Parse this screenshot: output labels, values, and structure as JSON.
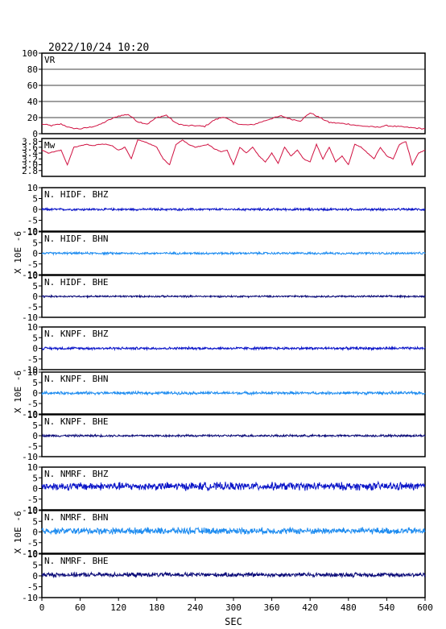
{
  "title": "2022/10/24  10:20",
  "xlabel": "SEC",
  "x_ticks": [
    0,
    60,
    120,
    180,
    240,
    300,
    360,
    420,
    480,
    540,
    600
  ],
  "xlim": [
    0,
    600
  ],
  "ylabel": "X 10E -6",
  "chart_data": {
    "type": "line",
    "panels": [
      {
        "name": "VR",
        "color": "#d01040",
        "ylim": [
          0,
          100
        ],
        "yticks": [
          0,
          20,
          40,
          60,
          80,
          100
        ],
        "grid": true,
        "x": [
          0,
          15,
          30,
          45,
          60,
          75,
          90,
          105,
          120,
          135,
          150,
          165,
          180,
          195,
          210,
          225,
          240,
          255,
          270,
          285,
          300,
          315,
          330,
          345,
          360,
          375,
          390,
          405,
          420,
          435,
          450,
          465,
          480,
          495,
          510,
          525,
          540,
          555,
          570,
          585,
          600
        ],
        "y": [
          12,
          10,
          12,
          7,
          6,
          8,
          11,
          17,
          22,
          24,
          15,
          12,
          20,
          23,
          13,
          10,
          10,
          9,
          17,
          21,
          14,
          11,
          11,
          15,
          19,
          22,
          18,
          16,
          26,
          20,
          14,
          13,
          12,
          10,
          9,
          8,
          10,
          9,
          8,
          7,
          6
        ]
      },
      {
        "name": "Mw",
        "color": "#d01040",
        "ylim": [
          2.6,
          3.9
        ],
        "yticks": [
          2.8,
          3.0,
          3.2,
          3.4,
          3.6,
          3.8
        ],
        "grid": false,
        "x": [
          0,
          10,
          20,
          30,
          40,
          50,
          60,
          70,
          80,
          90,
          100,
          110,
          120,
          130,
          140,
          150,
          160,
          170,
          180,
          190,
          200,
          210,
          220,
          230,
          240,
          250,
          260,
          270,
          280,
          290,
          300,
          310,
          320,
          330,
          340,
          350,
          360,
          370,
          380,
          390,
          400,
          410,
          420,
          430,
          440,
          450,
          460,
          470,
          480,
          490,
          500,
          510,
          520,
          530,
          540,
          550,
          560,
          570,
          580,
          590,
          600
        ],
        "y": [
          3.5,
          3.4,
          3.45,
          3.5,
          3.0,
          3.6,
          3.65,
          3.7,
          3.65,
          3.7,
          3.7,
          3.65,
          3.5,
          3.6,
          3.2,
          3.85,
          3.8,
          3.7,
          3.6,
          3.2,
          3.0,
          3.7,
          3.85,
          3.7,
          3.6,
          3.65,
          3.7,
          3.55,
          3.45,
          3.5,
          3.0,
          3.6,
          3.4,
          3.6,
          3.3,
          3.1,
          3.4,
          3.05,
          3.6,
          3.3,
          3.5,
          3.2,
          3.1,
          3.7,
          3.2,
          3.6,
          3.1,
          3.3,
          3.0,
          3.7,
          3.6,
          3.4,
          3.2,
          3.6,
          3.3,
          3.2,
          3.7,
          3.8,
          3.0,
          3.4,
          3.5
        ]
      },
      {
        "name": "N. HIDF. BHZ",
        "color": "#0a14c8",
        "ylim": [
          -10,
          10
        ],
        "yticks": [
          -10,
          -5,
          0,
          5,
          10
        ],
        "baseline": 0,
        "amplitude": 0.6
      },
      {
        "name": "N. HIDF. BHN",
        "color": "#1e8cf0",
        "ylim": [
          -10,
          10
        ],
        "yticks": [
          -10,
          -5,
          0,
          5,
          10
        ],
        "baseline": 0,
        "amplitude": 0.6
      },
      {
        "name": "N. HIDF. BHE",
        "color": "#0a0a78",
        "ylim": [
          -10,
          10
        ],
        "yticks": [
          -10,
          -5,
          0,
          5,
          10
        ],
        "baseline": 0,
        "amplitude": 0.5
      },
      {
        "name": "N. KNPF. BHZ",
        "color": "#0a14c8",
        "ylim": [
          -10,
          10
        ],
        "yticks": [
          -10,
          -5,
          0,
          5,
          10
        ],
        "baseline": 0,
        "amplitude": 0.7
      },
      {
        "name": "N. KNPF. BHN",
        "color": "#1e8cf0",
        "ylim": [
          -10,
          10
        ],
        "yticks": [
          -10,
          -5,
          0,
          5,
          10
        ],
        "baseline": 0,
        "amplitude": 0.8
      },
      {
        "name": "N. KNPF. BHE",
        "color": "#0a0a78",
        "ylim": [
          -10,
          10
        ],
        "yticks": [
          -10,
          -5,
          0,
          5,
          10
        ],
        "baseline": 0,
        "amplitude": 0.6
      },
      {
        "name": "N. NMRF. BHZ",
        "color": "#0a14c8",
        "ylim": [
          -10,
          10
        ],
        "yticks": [
          -10,
          -5,
          0,
          5,
          10
        ],
        "baseline": 1,
        "amplitude": 2.2
      },
      {
        "name": "N. NMRF. BHN",
        "color": "#1e8cf0",
        "ylim": [
          -10,
          10
        ],
        "yticks": [
          -10,
          -5,
          0,
          5,
          10
        ],
        "baseline": 0.5,
        "amplitude": 1.8
      },
      {
        "name": "N. NMRF. BHE",
        "color": "#0a0a78",
        "ylim": [
          -10,
          10
        ],
        "yticks": [
          -10,
          -5,
          0,
          5,
          10
        ],
        "baseline": 0.5,
        "amplitude": 1.2
      }
    ]
  }
}
